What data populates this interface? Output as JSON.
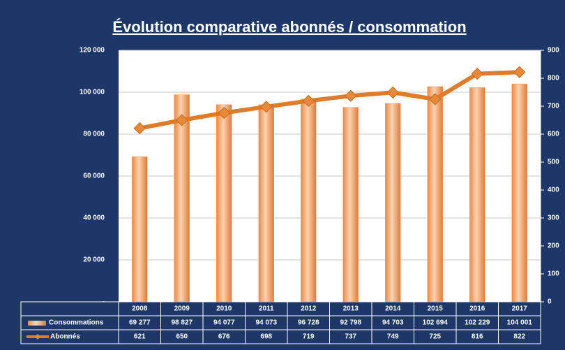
{
  "chart_data": {
    "type": "bar",
    "title": "Évolution comparative abonnés / consommation",
    "categories": [
      "2008",
      "2009",
      "2010",
      "2011",
      "2012",
      "2013",
      "2014",
      "2015",
      "2016",
      "2017"
    ],
    "series": [
      {
        "name": "Consommations",
        "type": "bar",
        "color": "#f4a66a",
        "values": [
          69277,
          98827,
          94077,
          94073,
          96728,
          92798,
          94703,
          102694,
          102229,
          104001
        ],
        "value_labels": [
          "69 277",
          "98 827",
          "94 077",
          "94 073",
          "96 728",
          "92 798",
          "94 703",
          "102 694",
          "102 229",
          "104 001"
        ]
      },
      {
        "name": "Abonnés",
        "type": "line",
        "axis": "y2",
        "color": "#e07b2a",
        "values": [
          621,
          650,
          676,
          698,
          719,
          737,
          749,
          725,
          816,
          822
        ]
      }
    ],
    "ylim": [
      0,
      120000
    ],
    "yticks": [
      {
        "value": 0,
        "label": "-"
      },
      {
        "value": 20000,
        "label": "20 000"
      },
      {
        "value": 40000,
        "label": "40 000"
      },
      {
        "value": 60000,
        "label": "60 000"
      },
      {
        "value": 80000,
        "label": "80 000"
      },
      {
        "value": 100000,
        "label": "100 000"
      },
      {
        "value": 120000,
        "label": "120 000"
      }
    ],
    "y2lim": [
      0,
      900
    ],
    "y2ticks": [
      0,
      100,
      200,
      300,
      400,
      500,
      600,
      700,
      800,
      900
    ],
    "grid": true
  }
}
